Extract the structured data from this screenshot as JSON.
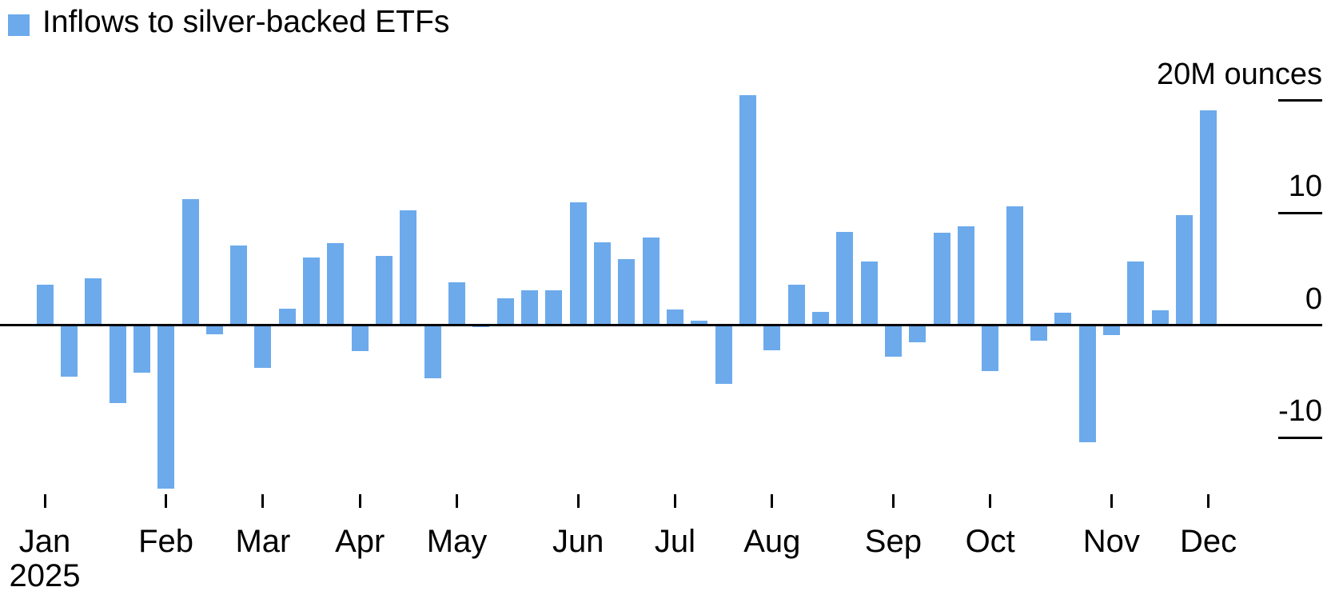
{
  "legend": {
    "label": "Inflows to silver-backed ETFs"
  },
  "chart_data": {
    "type": "bar",
    "title": "Inflows to silver-backed ETFs",
    "series_name": "Inflows to silver-backed ETFs",
    "unit_label": "20M ounces",
    "year_label": "2025",
    "frequency": "weekly",
    "bar_color": "#6CAAEC",
    "axis_color": "#000000",
    "text_color": "#000000",
    "background_color": "#ffffff",
    "grid": false,
    "legend_position": "top-left",
    "ylim": [
      -15,
      21
    ],
    "y_ticks": [
      {
        "value": 20,
        "label": "20M ounces"
      },
      {
        "value": 10,
        "label": "10"
      },
      {
        "value": 0,
        "label": "0"
      },
      {
        "value": -10,
        "label": "-10"
      }
    ],
    "x_month_ticks": [
      {
        "label": "Jan",
        "week": 1
      },
      {
        "label": "Feb",
        "week": 6
      },
      {
        "label": "Mar",
        "week": 10
      },
      {
        "label": "Apr",
        "week": 14
      },
      {
        "label": "May",
        "week": 18
      },
      {
        "label": "Jun",
        "week": 23
      },
      {
        "label": "Jul",
        "week": 27
      },
      {
        "label": "Aug",
        "week": 31
      },
      {
        "label": "Sep",
        "week": 36
      },
      {
        "label": "Oct",
        "week": 40
      },
      {
        "label": "Nov",
        "week": 45
      },
      {
        "label": "Dec",
        "week": 49
      }
    ],
    "values_m_oz": [
      3.6,
      -4.6,
      4.2,
      -6.9,
      -4.2,
      -14.5,
      11.2,
      -0.8,
      7.1,
      -3.8,
      1.5,
      6.0,
      7.3,
      -2.3,
      6.2,
      10.2,
      -4.7,
      3.8,
      -0.2,
      2.4,
      3.1,
      3.1,
      10.9,
      7.4,
      5.9,
      7.8,
      1.4,
      0.4,
      -5.2,
      20.5,
      -2.2,
      3.6,
      1.2,
      8.3,
      5.7,
      -2.8,
      -1.5,
      8.2,
      8.8,
      -4.1,
      10.6,
      -1.4,
      1.1,
      -10.4,
      -0.9,
      5.7,
      1.3,
      9.8,
      19.1
    ]
  }
}
